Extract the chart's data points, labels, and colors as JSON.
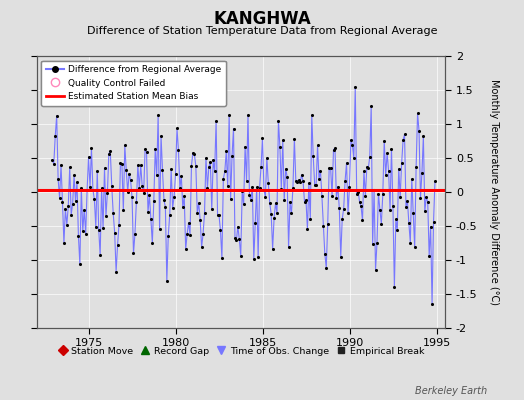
{
  "title": "KANGHWA",
  "subtitle": "Difference of Station Temperature Data from Regional Average",
  "ylabel": "Monthly Temperature Anomaly Difference (°C)",
  "xlabel_ticks": [
    1975,
    1980,
    1985,
    1990,
    1995
  ],
  "ylim": [
    -2,
    2
  ],
  "xlim": [
    1972.0,
    1995.5
  ],
  "bias_value": 0.03,
  "background_color": "#e0e0e0",
  "plot_bg_color": "#e0e0e0",
  "line_color": "#7777ff",
  "dot_color": "#000000",
  "bias_color": "#ff0000",
  "watermark": "Berkeley Earth",
  "seed": 42,
  "title_fontsize": 12,
  "subtitle_fontsize": 8,
  "tick_fontsize": 8,
  "ylabel_fontsize": 7
}
